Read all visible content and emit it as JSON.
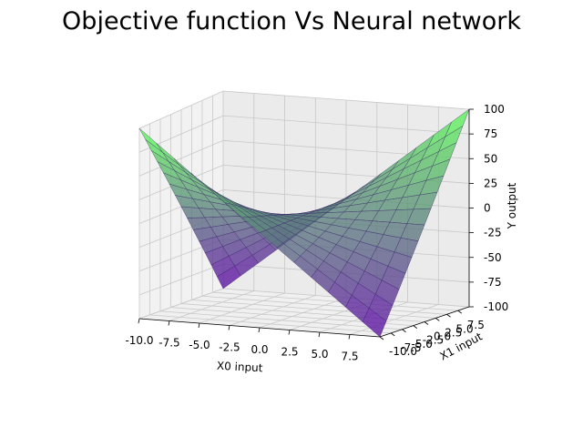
{
  "chart_data": {
    "type": "surface3d",
    "title": "Objective function Vs Neural network",
    "xlabel": "X0 input",
    "ylabel": "X1 input",
    "zlabel": "Y output",
    "xlim": [
      -10,
      10
    ],
    "ylim": [
      -10,
      10
    ],
    "zlim": [
      -100,
      100
    ],
    "xticks": [
      "-10.0",
      "-7.5",
      "-5.0",
      "-2.5",
      "0.0",
      "2.5",
      "5.0",
      "7.5"
    ],
    "yticks": [
      "-10.0",
      "-7.5",
      "-5.0",
      "-2.5",
      "0.0",
      "2.5",
      "5.0",
      "7.5"
    ],
    "zticks": [
      "-100",
      "-75",
      "-50",
      "-25",
      "0",
      "25",
      "50",
      "75",
      "100"
    ],
    "grid": true,
    "series": [
      {
        "function": "x0 * x1",
        "colormap": "autumn",
        "x_range": [
          -10,
          10
        ],
        "y_range": [
          -10,
          10
        ],
        "corner_values": {
          "x0=-10,x1=-10": 100,
          "x0=10,x1=-10": -100,
          "x0=-10,x1=10": -100,
          "x0=10,x1=10": 100
        }
      },
      {
        "function": "neural network approximation of x0 * x1",
        "colormap": "winter",
        "x_range": [
          -10,
          10
        ],
        "y_range": [
          -10,
          10
        ],
        "corner_values": {
          "x0=-10,x1=-10": 100,
          "x0=10,x1=-10": -100,
          "x0=-10,x1=10": -100,
          "x0=10,x1=10": 100
        }
      }
    ]
  }
}
